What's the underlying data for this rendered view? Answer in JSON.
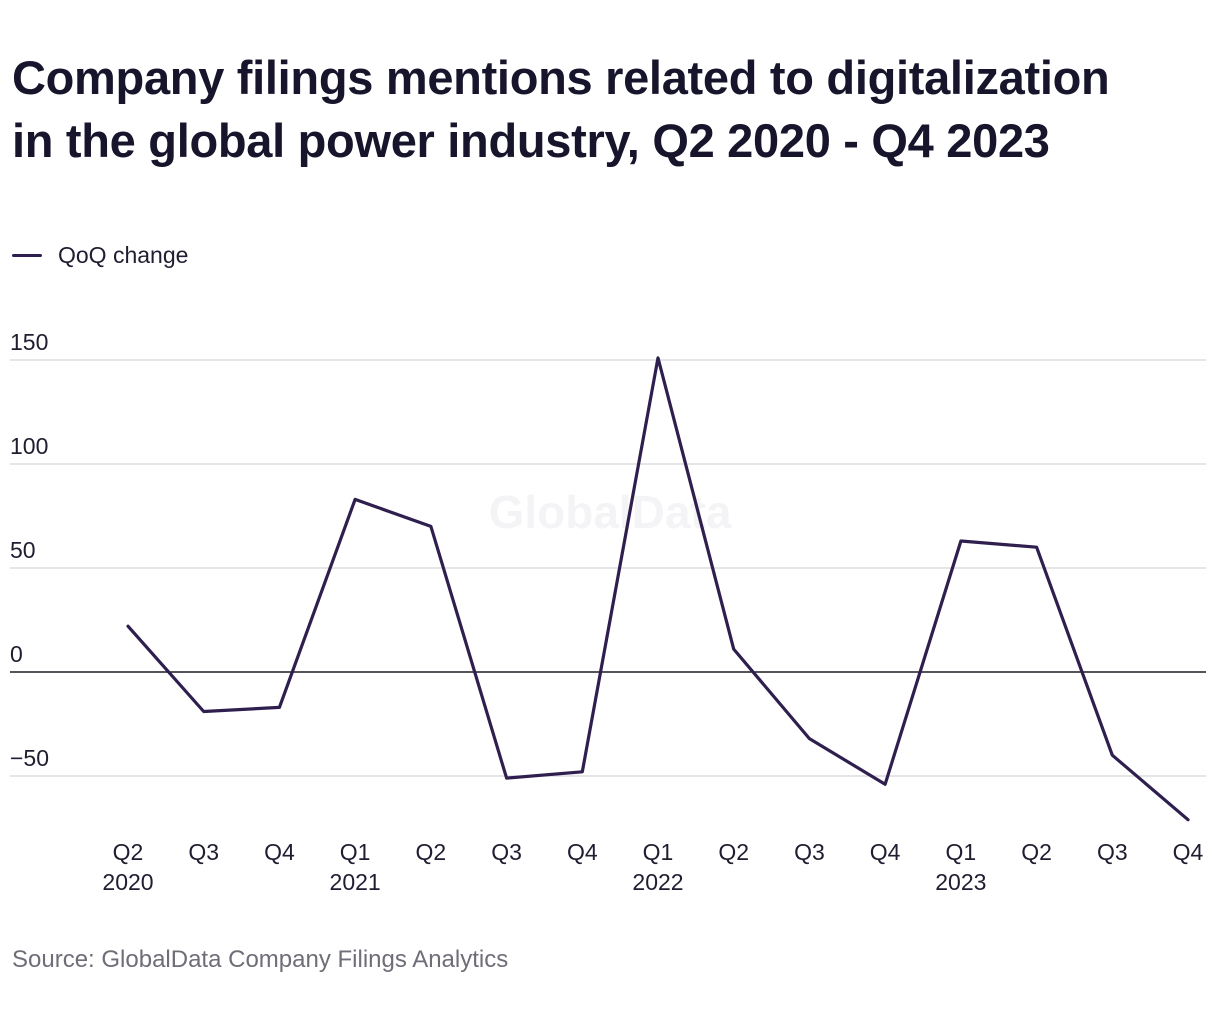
{
  "chart_data": {
    "type": "line",
    "title": [
      "Company filings mentions related to digitalization",
      "in the global power industry, Q2 2020 - Q4 2023"
    ],
    "categories": [
      "Q2 2020",
      "Q3 2020",
      "Q4 2020",
      "Q1 2021",
      "Q2 2021",
      "Q3 2021",
      "Q4 2021",
      "Q1 2022",
      "Q2 2022",
      "Q3 2022",
      "Q4 2022",
      "Q1 2023",
      "Q2 2023",
      "Q3 2023",
      "Q4 2023"
    ],
    "tick_labels": [
      {
        "line1": "Q2",
        "line2": "2020"
      },
      {
        "line1": "Q3",
        "line2": ""
      },
      {
        "line1": "Q4",
        "line2": ""
      },
      {
        "line1": "Q1",
        "line2": "2021"
      },
      {
        "line1": "Q2",
        "line2": ""
      },
      {
        "line1": "Q3",
        "line2": ""
      },
      {
        "line1": "Q4",
        "line2": ""
      },
      {
        "line1": "Q1",
        "line2": "2022"
      },
      {
        "line1": "Q2",
        "line2": ""
      },
      {
        "line1": "Q3",
        "line2": ""
      },
      {
        "line1": "Q4",
        "line2": ""
      },
      {
        "line1": "Q1",
        "line2": "2023"
      },
      {
        "line1": "Q2",
        "line2": ""
      },
      {
        "line1": "Q3",
        "line2": ""
      },
      {
        "line1": "Q4",
        "line2": ""
      }
    ],
    "series": [
      {
        "name": "QoQ change",
        "values": [
          22,
          -19,
          -17,
          83,
          70,
          -51,
          -48,
          151,
          11,
          -32,
          -54,
          63,
          60,
          -40,
          -71
        ]
      }
    ],
    "ylim": [
      -75,
      155
    ],
    "yticks": [
      150,
      100,
      50,
      0,
      -50
    ],
    "ytick_labels": [
      "150",
      "100",
      "50",
      "0",
      "−50"
    ],
    "grid": true,
    "legend": "top-left",
    "line_color": "#2e1f4f",
    "watermark": "GlobalData",
    "source": "Source: GlobalData Company Filings Analytics"
  }
}
